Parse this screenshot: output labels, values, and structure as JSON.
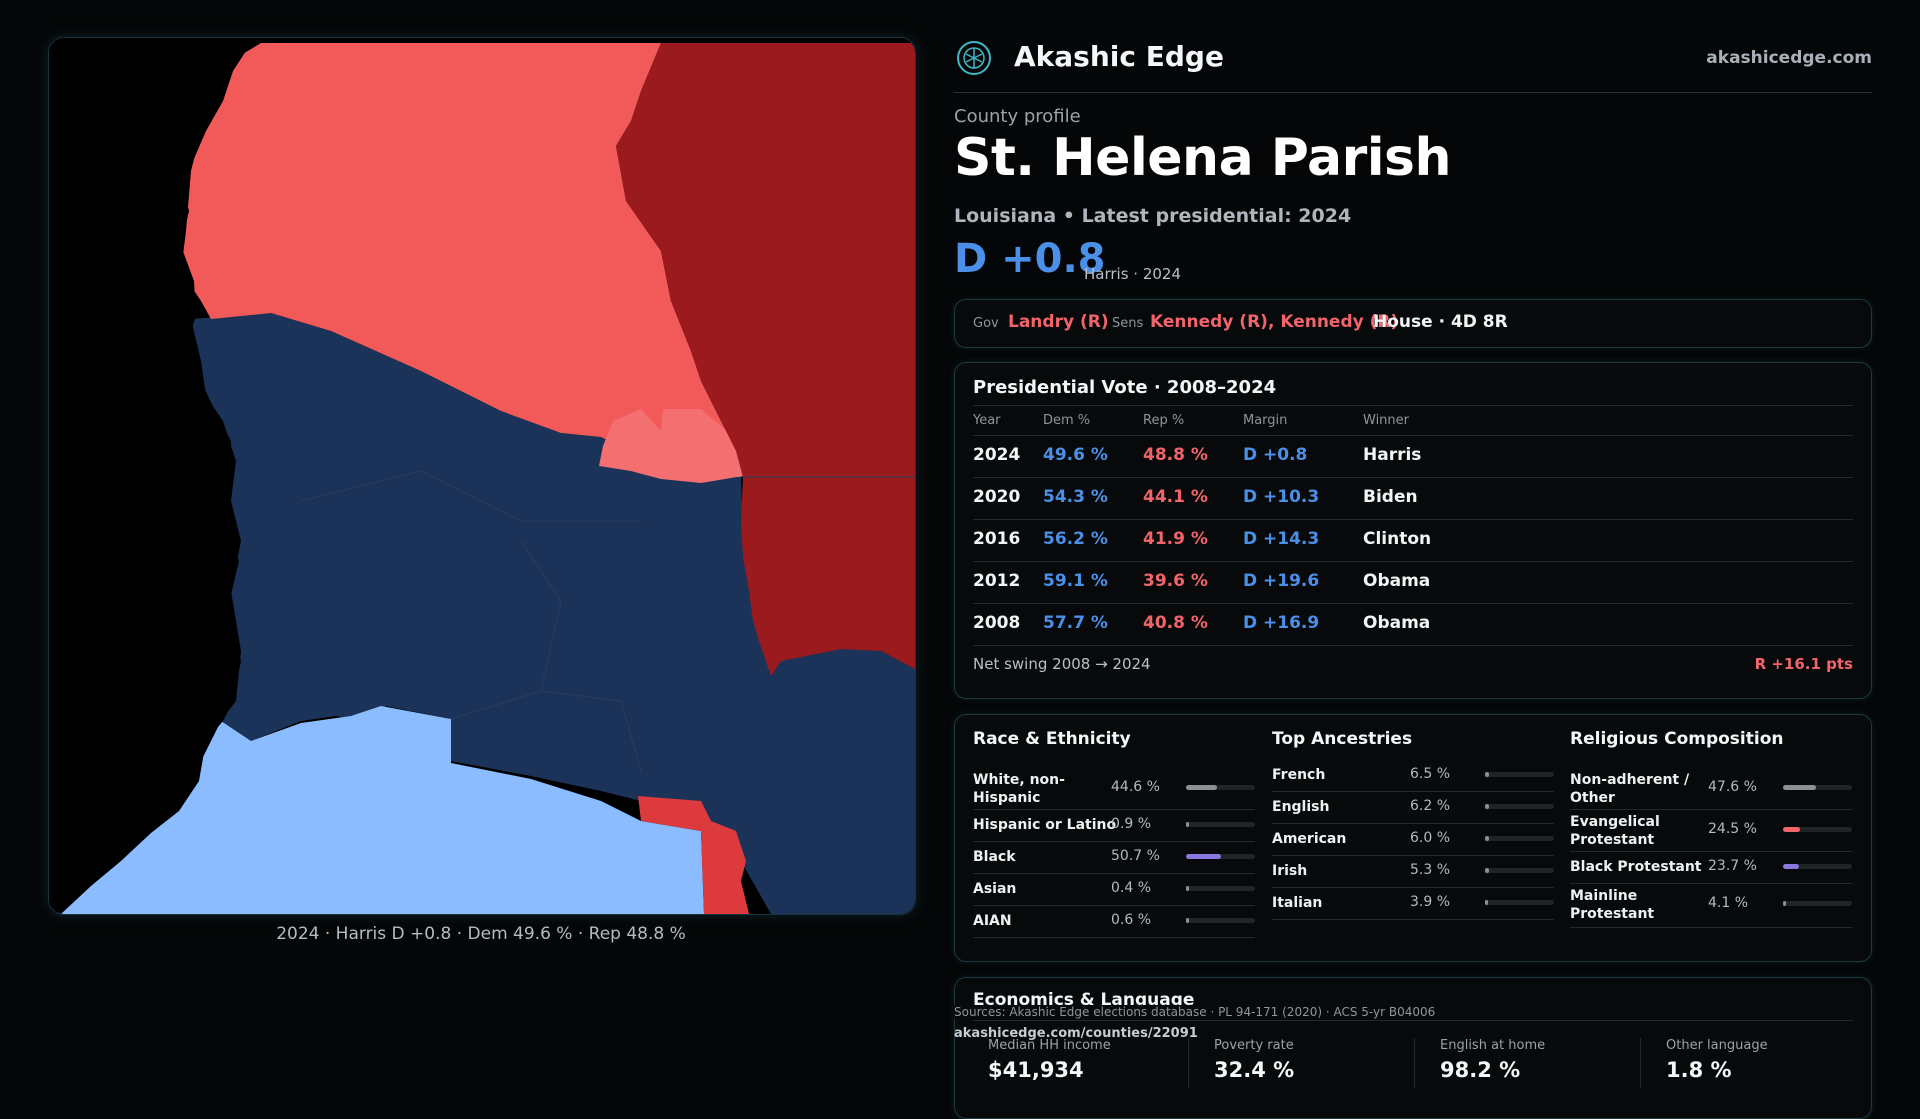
{
  "colors": {
    "dem": "#4a90e8",
    "rep": "#f0646a",
    "safe_dem": "#1b3358",
    "lean_dem": "#8abcff",
    "safe_rep": "#9a1a1e",
    "likely_rep": "#dc3a3c",
    "lean_rep": "#f25a5a",
    "tilt_rep": "#f47070",
    "black_bar": "#8a78e0",
    "evangelical_bar": "#f0646a",
    "neutral_bar": "#8b9096"
  },
  "map": {
    "caption": "2024 · Harris D +0.8 · Dem 49.6 % · Rep 48.8 %"
  },
  "header": {
    "logo_icon": "tree-of-life-icon",
    "brand": "Akashic Edge",
    "url": "akashicedge.com"
  },
  "profile": {
    "eyebrow": "County profile",
    "name": "St. Helena Parish",
    "subtitle": "Louisiana • Latest presidential: 2024",
    "margin": "D +0.8",
    "margin_note": "Harris · 2024"
  },
  "officials": {
    "gov_label": "Gov",
    "gov": "Landry (R)",
    "sens_label": "Sens",
    "sens": "Kennedy (R), Kennedy (R)",
    "house": "House · 4D 8R"
  },
  "presidential": {
    "title": "Presidential Vote · 2008–2024",
    "headers": [
      "Year",
      "Dem %",
      "Rep %",
      "Margin",
      "Winner"
    ],
    "rows": [
      {
        "year": "2024",
        "dem": "49.6 %",
        "rep": "48.8 %",
        "margin": "D +0.8",
        "winner": "Harris"
      },
      {
        "year": "2020",
        "dem": "54.3 %",
        "rep": "44.1 %",
        "margin": "D +10.3",
        "winner": "Biden"
      },
      {
        "year": "2016",
        "dem": "56.2 %",
        "rep": "41.9 %",
        "margin": "D +14.3",
        "winner": "Clinton"
      },
      {
        "year": "2012",
        "dem": "59.1 %",
        "rep": "39.6 %",
        "margin": "D +19.6",
        "winner": "Obama"
      },
      {
        "year": "2008",
        "dem": "57.7 %",
        "rep": "40.8 %",
        "margin": "D +16.9",
        "winner": "Obama"
      }
    ],
    "net_label": "Net swing 2008 → 2024",
    "net_value": "R +16.1 pts"
  },
  "race": {
    "title": "Race & Ethnicity",
    "items": [
      {
        "label": "White, non-Hispanic",
        "value": "44.6 %",
        "share": 0.446
      },
      {
        "label": "Hispanic or Latino",
        "value": "0.9 %",
        "share": 0.009
      },
      {
        "label": "Black",
        "value": "50.7 %",
        "share": 0.507
      },
      {
        "label": "Asian",
        "value": "0.4 %",
        "share": 0.004
      },
      {
        "label": "AIAN",
        "value": "0.6 %",
        "share": 0.006
      }
    ]
  },
  "ancestry": {
    "title": "Top Ancestries",
    "items": [
      {
        "label": "French",
        "value": "6.5 %",
        "share": 0.065
      },
      {
        "label": "English",
        "value": "6.2 %",
        "share": 0.062
      },
      {
        "label": "American",
        "value": "6.0 %",
        "share": 0.06
      },
      {
        "label": "Irish",
        "value": "5.3 %",
        "share": 0.053
      },
      {
        "label": "Italian",
        "value": "3.9 %",
        "share": 0.039
      }
    ]
  },
  "religion": {
    "title": "Religious Composition",
    "items": [
      {
        "label": "Non-adherent / Other",
        "value": "47.6 %",
        "share": 0.476
      },
      {
        "label": "Evangelical Protestant",
        "value": "24.5 %",
        "share": 0.245
      },
      {
        "label": "Black Protestant",
        "value": "23.7 %",
        "share": 0.237
      },
      {
        "label": "Mainline Protestant",
        "value": "4.1 %",
        "share": 0.041
      }
    ]
  },
  "economics": {
    "title": "Economics & Language",
    "stats": [
      {
        "label": "Median HH income",
        "value": "$41,934"
      },
      {
        "label": "Poverty rate",
        "value": "32.4 %"
      },
      {
        "label": "English at home",
        "value": "98.2 %"
      },
      {
        "label": "Other language",
        "value": "1.8 %"
      }
    ]
  },
  "footer": {
    "sources": "Sources: Akashic Edge elections database · PL 94-171 (2020) · ACS 5-yr B04006",
    "permalink": "akashicedge.com/counties/22091"
  }
}
